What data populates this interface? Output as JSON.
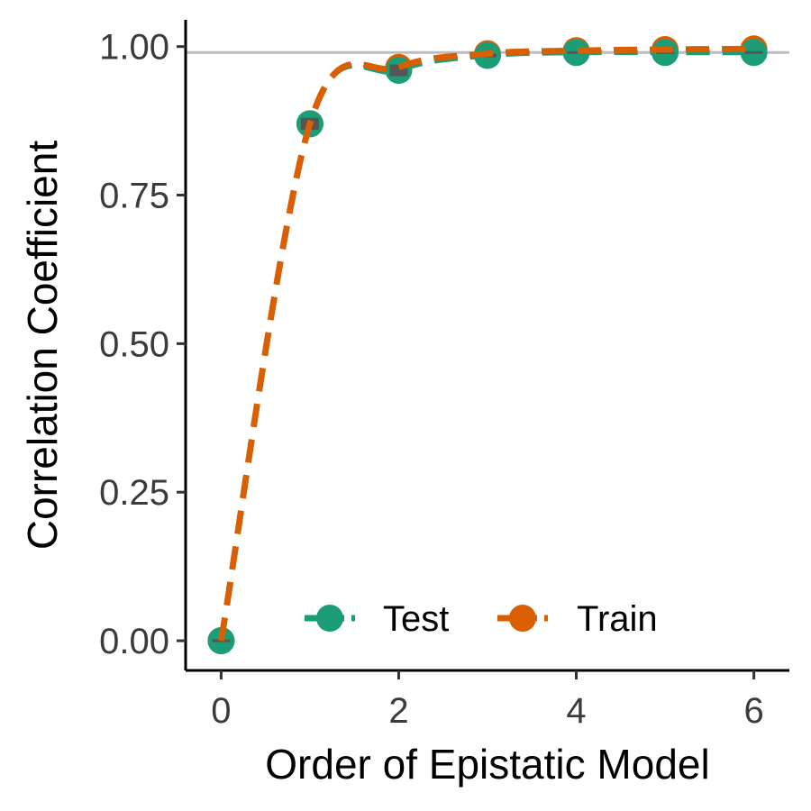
{
  "chart_data": {
    "type": "line",
    "title": "",
    "xlabel": "Order of Epistatic Model",
    "ylabel": "Correlation Coefficient",
    "x": [
      0,
      1,
      2,
      3,
      4,
      5,
      6
    ],
    "xlim": [
      -0.4,
      6.4
    ],
    "ylim": [
      -0.05,
      1.045
    ],
    "x_ticks": [
      0,
      2,
      4,
      6
    ],
    "y_ticks": [
      0,
      0.25,
      0.5,
      0.75,
      1.0
    ],
    "x_tick_labels": [
      "0",
      "2",
      "4",
      "6"
    ],
    "y_tick_labels": [
      "0.00",
      "0.25",
      "0.50",
      "0.75",
      "1.00"
    ],
    "reference_line": {
      "y": 0.99,
      "color": "#bdbdbd"
    },
    "grid": false,
    "legend": {
      "position": "bottom-right"
    },
    "series": [
      {
        "name": "Test",
        "color": "#1b9e77",
        "line_style": "dashed",
        "values": [
          0.0,
          0.87,
          0.96,
          0.985,
          0.99,
          0.99,
          0.99
        ],
        "error": [
          0.0,
          0.01,
          0.01,
          0.003,
          0.002,
          0.002,
          0.002
        ]
      },
      {
        "name": "Train",
        "color": "#d95f02",
        "line_style": "dashed",
        "values": [
          0.0,
          0.87,
          0.965,
          0.988,
          0.993,
          0.995,
          0.996
        ]
      }
    ]
  }
}
